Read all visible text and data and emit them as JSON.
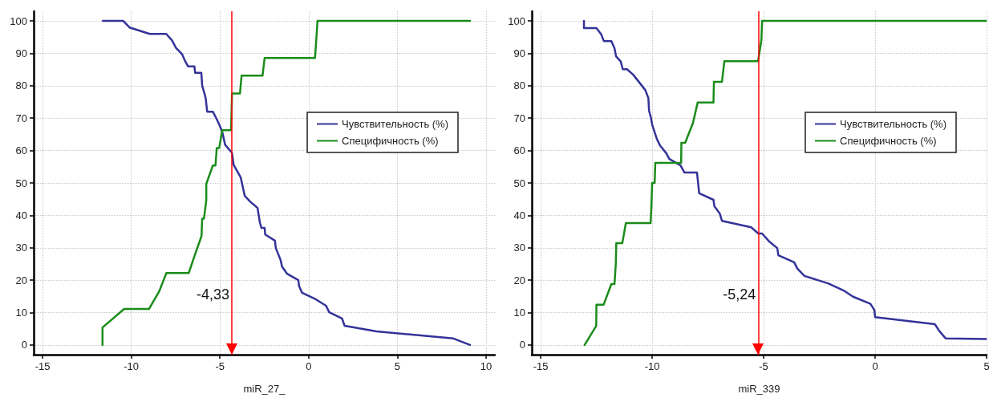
{
  "chart_data": [
    {
      "type": "line",
      "xlabel": "miR_27_",
      "xlim": [
        -15.5,
        10.5
      ],
      "xticks": [
        -15,
        -10,
        -5,
        0,
        5,
        10
      ],
      "ylim": [
        -3,
        103
      ],
      "yticks": [
        0,
        10,
        20,
        30,
        40,
        50,
        60,
        70,
        80,
        90,
        100
      ],
      "grid": true,
      "legend": "right",
      "marker": "none",
      "line_style": "solid",
      "series": [
        {
          "name": "Чувствительность (%)",
          "color": "#333399",
          "x": [
            -11.6,
            -10.45,
            -10.1,
            -8.96,
            -8.03,
            -7.7,
            -7.48,
            -7.13,
            -6.98,
            -6.8,
            -6.44,
            -6.4,
            -6.05,
            -6.0,
            -5.86,
            -5.8,
            -5.72,
            -5.4,
            -5.18,
            -5.04,
            -4.87,
            -4.71,
            -4.32,
            -4.23,
            -3.83,
            -3.6,
            -3.29,
            -2.88,
            -2.75,
            -2.66,
            -2.48,
            -2.45,
            -1.9,
            -1.85,
            -1.58,
            -1.5,
            -1.22,
            -0.58,
            -0.54,
            -0.37,
            0.4,
            0.98,
            1.16,
            1.88,
            2.03,
            3.83,
            8.16,
            9.1
          ],
          "values": [
            100,
            100,
            98,
            96,
            96,
            94,
            91.7,
            89.7,
            87.8,
            86,
            86,
            84,
            84,
            80,
            77.4,
            76,
            72,
            72,
            69.7,
            68,
            65.8,
            61.8,
            59.3,
            55.6,
            51.7,
            46,
            44.2,
            42.3,
            37.8,
            36.1,
            36.1,
            34.1,
            32.2,
            29.9,
            26.2,
            24.2,
            22,
            20,
            18.2,
            16.1,
            14.1,
            12.1,
            10.1,
            8.2,
            5.9,
            4.2,
            2,
            0
          ]
        },
        {
          "name": "Специфичность (%)",
          "color": "#1a8c1a",
          "x": [
            -11.62,
            -11.62,
            -10.4,
            -9.0,
            -8.42,
            -8.02,
            -6.76,
            -6.4,
            -6.04,
            -6.0,
            -5.9,
            -5.77,
            -5.77,
            -5.4,
            -5.25,
            -5.18,
            -5.04,
            -4.87,
            -4.37,
            -4.32,
            -3.87,
            -3.78,
            -2.6,
            -2.48,
            0.36,
            0.43,
            0.5,
            9.1
          ],
          "values": [
            0,
            5.4,
            11.1,
            11.1,
            16.6,
            22.2,
            22.2,
            28,
            33.6,
            39,
            39,
            44.7,
            49.7,
            55.4,
            55.4,
            60.8,
            60.8,
            66.3,
            66.3,
            77.6,
            77.6,
            83.1,
            83.1,
            88.6,
            88.6,
            94.2,
            100,
            100
          ]
        }
      ],
      "ref_lines": [
        {
          "axis": "x",
          "value": -4.33,
          "label": "-4,33",
          "color": "#ff0000"
        }
      ]
    },
    {
      "type": "line",
      "xlabel": "miR_339",
      "xlim": [
        -15.4,
        5
      ],
      "xticks": [
        -15,
        -10,
        -5,
        0,
        5
      ],
      "ylim": [
        -3,
        103
      ],
      "yticks": [
        0,
        10,
        20,
        30,
        40,
        50,
        60,
        70,
        80,
        90,
        100
      ],
      "grid": true,
      "legend": "right",
      "marker": "none",
      "line_style": "solid",
      "series": [
        {
          "name": "Чувствительность (%)",
          "color": "#333399",
          "x": [
            -13.06,
            -13.06,
            -12.5,
            -12.28,
            -12.17,
            -11.83,
            -11.69,
            -11.62,
            -11.41,
            -11.32,
            -11.13,
            -10.85,
            -10.31,
            -10.17,
            -10.14,
            -10.06,
            -10.0,
            -9.79,
            -9.65,
            -9.37,
            -9.23,
            -8.73,
            -8.55,
            -7.99,
            -7.89,
            -7.25,
            -7.21,
            -6.97,
            -6.87,
            -5.56,
            -5.24,
            -5.07,
            -4.76,
            -4.39,
            -4.34,
            -3.63,
            -3.49,
            -3.17,
            -2.11,
            -1.41,
            -0.99,
            -0.21,
            -0.03,
            0,
            2.68,
            2.89,
            3.17,
            4.97
          ],
          "values": [
            100,
            97.8,
            97.8,
            95.8,
            93.8,
            93.8,
            91.6,
            89.1,
            87.5,
            85.1,
            85.1,
            83.4,
            78.7,
            76.2,
            72.3,
            70.3,
            68,
            63.6,
            61.6,
            59.2,
            57.4,
            55.4,
            53.2,
            53.2,
            46.8,
            44.8,
            42.8,
            40.6,
            38.3,
            36.3,
            34.4,
            34.4,
            32,
            29.9,
            27.7,
            25.5,
            23.6,
            21.3,
            19,
            16.8,
            14.9,
            12.7,
            10.7,
            8.6,
            6.4,
            4.2,
            2,
            1.8
          ]
        },
        {
          "name": "Специфичность (%)",
          "color": "#1a8c1a",
          "x": [
            -13.03,
            -12.51,
            -12.5,
            -12.18,
            -11.83,
            -11.69,
            -11.63,
            -11.61,
            -11.34,
            -11.18,
            -10.07,
            -10.03,
            -10.0,
            -9.89,
            -9.86,
            -8.7,
            -8.69,
            -8.52,
            -8.17,
            -7.96,
            -7.25,
            -7.23,
            -6.87,
            -6.76,
            -5.25,
            -5.1,
            -5.07,
            4.97
          ],
          "values": [
            0,
            5.9,
            12.4,
            12.4,
            18.8,
            18.8,
            25.2,
            31.4,
            31.4,
            37.6,
            37.6,
            43.8,
            50,
            50,
            56.2,
            56.2,
            62.4,
            62.4,
            68.5,
            74.8,
            74.8,
            81.2,
            81.2,
            87.6,
            87.6,
            94.1,
            100,
            100
          ]
        }
      ],
      "ref_lines": [
        {
          "axis": "x",
          "value": -5.24,
          "label": "-5,24",
          "color": "#ff0000"
        }
      ]
    }
  ]
}
